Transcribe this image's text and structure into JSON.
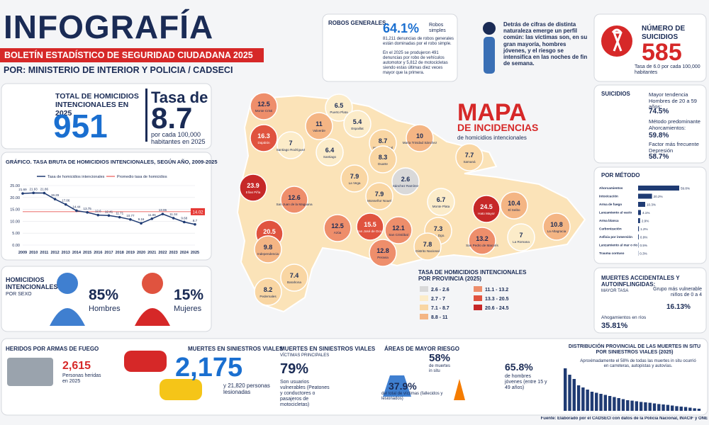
{
  "header": {
    "title": "INFOGRAFÍA",
    "subtitle": "BOLETÍN ESTADÍSTICO DE SEGURIDAD CIUDADANA 2025",
    "author": "POR: MINISTERIO DE INTERIOR Y POLICIA / CADSECI"
  },
  "homicides": {
    "label": "TOTAL DE HOMICIDIOS INTENCIONALES EN 2025",
    "total": "951",
    "rate_label": "Tasa de",
    "rate": "8.7",
    "rate_note": "por cada 100,000 habitantes en 2025"
  },
  "robos": {
    "title": "ROBOS GENERALES",
    "pct": "64.1%",
    "pct_label": "Robos simples",
    "text1": "81,211 denuncias de robos generales están dominadas por el robo simple.",
    "text2": "En el 2025 se produjeron 491 denuncias por robo de vehículos automotor y 5,812 de motocicletas siendo estas últimas diez veces mayor que la primera."
  },
  "profile": {
    "text": "Detrás de cifras de distinta naturaleza emerge un perfil común: las víctimas son, en su gran mayoría, hombres jóvenes, y el riesgo se intensifica en las noches de fin de semana."
  },
  "suicides": {
    "title": "NÚMERO DE SUICIDIOS",
    "value": "585",
    "note": "Tasa de 6.0 por cada 100,000 habitantes"
  },
  "suicidios": {
    "title": "SUICIDIOS",
    "items": [
      {
        "label": "Mayor tendencia Hombres de 20 a 59 años:",
        "value": "74.5%"
      },
      {
        "label": "Método predominante Ahorcamientos:",
        "value": "59.8%"
      },
      {
        "label": "Factor más frecuente Depresión",
        "value": "58.7%"
      }
    ]
  },
  "method": {
    "title": "POR MÉTODO"
  },
  "map": {
    "title": "MAPA",
    "subtitle": "DE INCIDENCIAS",
    "note": "de homicidios intencionales",
    "legend_title": "TASA DE HOMICIDIOS INTENCIONALES POR PROVINCIA (2025)",
    "legend": [
      {
        "label": "2.6 - 2.6",
        "range": [
          2.6,
          2.6
        ],
        "color": "#d9d9d9"
      },
      {
        "label": "2.7 - 7",
        "range": [
          2.7,
          7
        ],
        "color": "#fcecc9"
      },
      {
        "label": "7.1 - 8.7",
        "range": [
          7.1,
          8.7
        ],
        "color": "#f9d6a3"
      },
      {
        "label": "8.8 - 11",
        "range": [
          8.8,
          11
        ],
        "color": "#f4b584"
      },
      {
        "label": "11.1 - 13.2",
        "range": [
          11.1,
          13.2
        ],
        "color": "#ee8e6b"
      },
      {
        "label": "13.3 - 20.5",
        "range": [
          13.3,
          20.5
        ],
        "color": "#e0533f"
      },
      {
        "label": "20.6 - 24.5",
        "range": [
          20.6,
          24.5
        ],
        "color": "#c62828"
      }
    ],
    "provinces": [
      {
        "name": "Monte Cristi",
        "value": 12.5
      },
      {
        "name": "Puerto Plata",
        "value": 6.5
      },
      {
        "name": "Valverde",
        "value": 11
      },
      {
        "name": "Espaillat",
        "value": 5.4
      },
      {
        "name": "Dajabón",
        "value": 16.3
      },
      {
        "name": "Santiago Rodríguez",
        "value": 7
      },
      {
        "name": "Hnas. Mirabal",
        "value": 8.7
      },
      {
        "name": "María Trinidad Sánchez",
        "value": 10
      },
      {
        "name": "Santiago",
        "value": 6.4
      },
      {
        "name": "Duarte",
        "value": 8.3
      },
      {
        "name": "Samaná",
        "value": 7.7
      },
      {
        "name": "Elías Piña",
        "value": 23.9
      },
      {
        "name": "La Vega",
        "value": 7.9
      },
      {
        "name": "Sánchez Ramírez",
        "value": 2.6
      },
      {
        "name": "San Juan de la Maguana",
        "value": 12.6
      },
      {
        "name": "Monseñor Nouel",
        "value": 7.9
      },
      {
        "name": "Monte Plata",
        "value": 6.7
      },
      {
        "name": "Hato Mayor",
        "value": 24.5
      },
      {
        "name": "El Seibo",
        "value": 10.4
      },
      {
        "name": "Bahoruco",
        "value": 20.5
      },
      {
        "name": "Azúa",
        "value": 12.5
      },
      {
        "name": "San José de Ocoa",
        "value": 15.5
      },
      {
        "name": "San Cristóbal",
        "value": 12.1
      },
      {
        "name": "Sto. Dgo.",
        "value": 7.3
      },
      {
        "name": "Distrito Nacional",
        "value": 7.8
      },
      {
        "name": "San Pedro de Macorís",
        "value": 13.2
      },
      {
        "name": "La Romana",
        "value": 7
      },
      {
        "name": "La Altagracia",
        "value": 10.8
      },
      {
        "name": "Independencia",
        "value": 9.8
      },
      {
        "name": "Peravia",
        "value": 12.8
      },
      {
        "name": "Barahona",
        "value": 7.4
      },
      {
        "name": "Pedernales",
        "value": 8.2
      }
    ]
  },
  "sex": {
    "title": "HOMICIDIOS INTENCIONALES",
    "sub": "POR SEXO",
    "men_value": "85%",
    "men_label": "Hombres",
    "women_value": "15%",
    "women_label": "Mujeres"
  },
  "accidental": {
    "title": "MUERTES ACCIDENTALES Y AUTOINFLINGIDAS:",
    "sub": "MAYOR TASA",
    "group": "Grupo más vulnerable niños de 0 a 4",
    "group_value": "16.13%",
    "drown": "Ahogamientos en ríos",
    "drown_value": "35.81%"
  },
  "heridos": {
    "title": "HERIDOS POR ARMAS DE FUEGO",
    "value": "2,615",
    "text": "Personas heridas en 2025"
  },
  "viales": {
    "title": "MUERTES EN SINIESTROS VIALES",
    "value": "2,175",
    "note": "y 21,820 personas lesionadas"
  },
  "vulnerables": {
    "title": "MUERTES EN SINIESTROS VIALES",
    "sub": "VÍCTIMAS PRINCIPALES",
    "value": "79%",
    "text": "Son usuarios vulnerables (Peatones y conductores o pasajeros de motocicletas)"
  },
  "riesgo": {
    "title": "ÁREAS DE MAYOR RIESGO",
    "v1": "58%",
    "t1": "de muertes in situ",
    "v2": "37.9%",
    "t2": "del total de víctimas (fallecidos y lesionados)",
    "v3": "65.8%",
    "t3": "de hombres jóvenes (entre 15 y 49 años)"
  },
  "distribution": {
    "note": "Aproximadamente el 58% de todas las muertes in situ ocurrió en carreteras, autopistas y autovías."
  },
  "footer": "Fuente: Elaborado por el CADSECI con datos de la Policía Nacional, INACIF y ONE",
  "chart_data": [
    {
      "type": "line",
      "title": "GRÁFICO. TASA BRUTA DE HOMICIDIOS INTENCIONALES, SEGÚN AÑO, 2009-2025",
      "categories": [
        "2009",
        "2010",
        "2011",
        "2012",
        "2013",
        "2014",
        "2015",
        "2016",
        "2017",
        "2018",
        "2019",
        "2020",
        "2021",
        "2022",
        "2023",
        "2024",
        "2025"
      ],
      "series": [
        {
          "name": "Tasa de homicidios intencionales",
          "color": "#1f3b73",
          "values": [
            21.69,
            21.93,
            21.86,
            19.29,
            17.06,
            14.44,
            13.75,
            12.6,
            12.41,
            11.71,
            10.77,
            9.16,
            11.06,
            13.06,
            11.34,
            9.68,
            8.7
          ]
        }
      ],
      "reference": {
        "name": "Promedio tasa de homicidios",
        "value": 14.02,
        "color": "#e53935"
      },
      "ylim": [
        0,
        25
      ],
      "yticks": [
        {
          "value": 0,
          "label": "0.00"
        },
        {
          "value": 5,
          "label": "5.00"
        },
        {
          "value": 10,
          "label": "10.00"
        },
        {
          "value": 15,
          "label": "15.00"
        },
        {
          "value": 20,
          "label": "20.00"
        },
        {
          "value": 25,
          "label": "25.00"
        }
      ]
    },
    {
      "type": "hbar",
      "color": "#1f3b73",
      "categories": [
        "Ahorcamientos",
        "Intoxicación",
        "Arma de fuego",
        "Lanzamiento al vacío",
        "Arma blanca",
        "Carbonización",
        "Asfixia por inmersión",
        "Lanzamiento al mar o río",
        "Trauma contuso"
      ],
      "values": [
        59.8,
        20.2,
        10.3,
        4.1,
        2.9,
        1.2,
        0.9,
        0.5,
        0.3
      ],
      "value_labels": [
        "59.8%",
        "20.2%",
        "10.3%",
        "4.1%",
        "2.9%",
        "1.2%",
        "0.9%",
        "0.5%",
        "0.3%"
      ]
    },
    {
      "type": "bar",
      "color": "#1f3b73",
      "title": "DISTRIBUCIÓN PROVINCIAL DE LAS MUERTES IN SITU POR SINIESTROS VIALES (2025)",
      "values": [
        20,
        17,
        15,
        12,
        11,
        10,
        9,
        8.5,
        8,
        7.5,
        7,
        6.5,
        6,
        5.5,
        5,
        4.8,
        4.5,
        4.2,
        4,
        3.8,
        3.5,
        3.2,
        3,
        2.8,
        2.5,
        2.2,
        2,
        1.8,
        1.5,
        1.2,
        1
      ]
    }
  ]
}
